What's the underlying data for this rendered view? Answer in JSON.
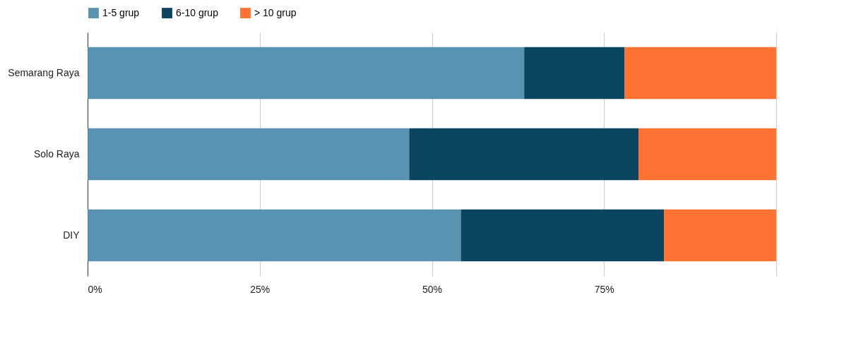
{
  "chart_data": {
    "type": "bar",
    "orientation": "horizontal",
    "stacked": true,
    "categories": [
      "Semarang Raya",
      "Solo Raya",
      "DIY"
    ],
    "series": [
      {
        "name": "1-5 grup",
        "color": "#5a92b2",
        "values": [
          63.4,
          46.7,
          54.2
        ]
      },
      {
        "name": "6-10 grup",
        "color": "#0b4560",
        "values": [
          14.6,
          33.3,
          29.5
        ]
      },
      {
        "name": "> 10 grup",
        "color": "#ff7232",
        "values": [
          22.0,
          20.0,
          16.3
        ]
      }
    ],
    "xlim": [
      0,
      100
    ],
    "xticks": [
      {
        "value": 0,
        "label": "0%"
      },
      {
        "value": 25,
        "label": "25%"
      },
      {
        "value": 50,
        "label": "50%"
      },
      {
        "value": 75,
        "label": "75%"
      },
      {
        "value": 100,
        "label": null
      }
    ],
    "grid": "x",
    "legend": "top"
  }
}
